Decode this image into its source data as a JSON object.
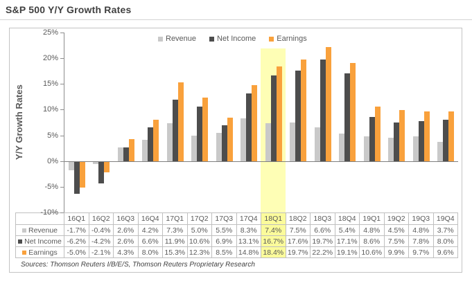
{
  "page": {
    "title": "S&P 500 Y/Y Growth Rates",
    "source_note": "Sources: Thomson Reuters I/B/E/S, Thomson Reuters Proprietary Research"
  },
  "colors": {
    "revenue": "#c9c9c9",
    "net_income": "#4d4d4d",
    "earnings": "#f9a13c",
    "highlight_cell": "#fbfb9b",
    "axis_text": "#595959",
    "border": "#bfbfbf"
  },
  "chart_data": {
    "type": "bar",
    "title": "S&P 500 Y/Y Growth Rates",
    "xlabel": "",
    "ylabel": "Y/Y Growth Rates",
    "ylim": [
      -10,
      25
    ],
    "yticks": [
      25,
      20,
      15,
      10,
      5,
      0,
      -5,
      -10
    ],
    "ytick_labels": [
      "25%",
      "20%",
      "15%",
      "10%",
      "5%",
      "0%",
      "-5%",
      "-10%"
    ],
    "grid": false,
    "legend_position": "top-center",
    "highlighted_category": "18Q1",
    "categories": [
      "16Q1",
      "16Q2",
      "16Q3",
      "16Q4",
      "17Q1",
      "17Q2",
      "17Q3",
      "17Q4",
      "18Q1",
      "18Q2",
      "18Q3",
      "18Q4",
      "19Q1",
      "19Q2",
      "19Q3",
      "19Q4"
    ],
    "series": [
      {
        "name": "Revenue",
        "color": "#c9c9c9",
        "values": [
          -1.7,
          -0.4,
          2.6,
          4.2,
          7.3,
          5.0,
          5.5,
          8.3,
          7.4,
          7.5,
          6.6,
          5.4,
          4.8,
          4.5,
          4.8,
          3.7
        ]
      },
      {
        "name": "Net Income",
        "color": "#4d4d4d",
        "values": [
          -6.2,
          -4.2,
          2.6,
          6.6,
          11.9,
          10.6,
          6.9,
          13.1,
          16.7,
          17.6,
          19.7,
          17.1,
          8.6,
          7.5,
          7.8,
          8.0
        ]
      },
      {
        "name": "Earnings",
        "color": "#f9a13c",
        "values": [
          -5.0,
          -2.1,
          4.3,
          8.0,
          15.3,
          12.3,
          8.5,
          14.8,
          18.4,
          19.7,
          22.2,
          19.1,
          10.6,
          9.9,
          9.7,
          9.6
        ]
      }
    ]
  }
}
